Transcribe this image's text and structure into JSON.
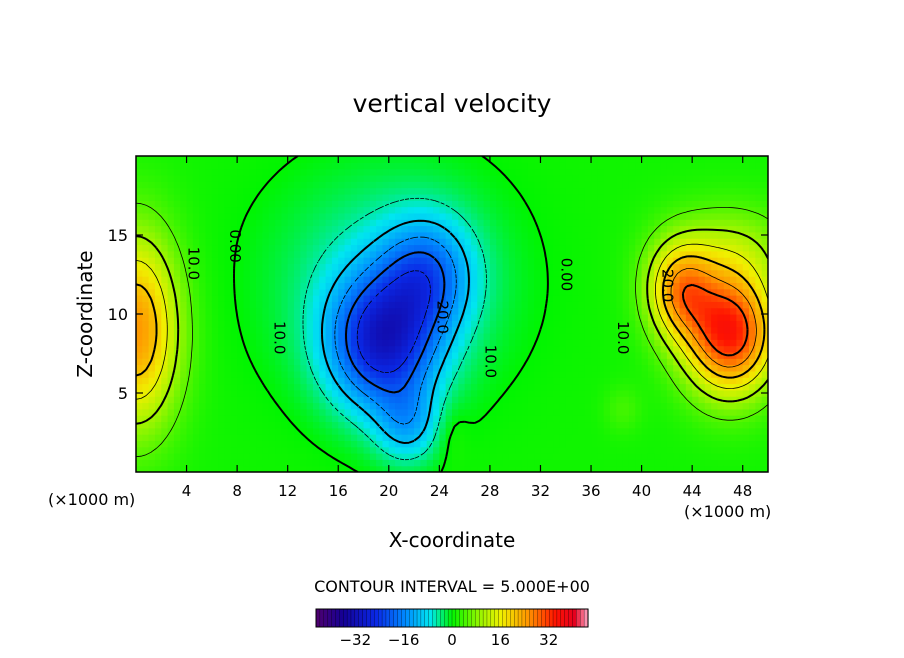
{
  "chart_data": {
    "type": "heatmap",
    "title": "vertical velocity",
    "xlabel": "X-coordinate",
    "ylabel": "Z-coordinate",
    "x_unit_left": "(×1000 m)",
    "x_unit_right": "(×1000 m)",
    "xlim": [
      0,
      50
    ],
    "ylim": [
      0,
      20
    ],
    "xticks": [
      4,
      8,
      12,
      16,
      20,
      24,
      28,
      32,
      36,
      40,
      44,
      48
    ],
    "yticks": [
      5,
      10,
      15
    ],
    "contour_interval_text": "CONTOUR INTERVAL = 5.000E+00",
    "contour_labels": [
      {
        "text": "10.0",
        "x": 4.5,
        "z": 13.2
      },
      {
        "text": "0.00",
        "x": 7.8,
        "z": 14.3
      },
      {
        "text": "10.0",
        "x": 11.3,
        "z": 8.5
      },
      {
        "text": "20.0",
        "x": 24.2,
        "z": 9.8
      },
      {
        "text": "10.0",
        "x": 28.0,
        "z": 7.0
      },
      {
        "text": "0.00",
        "x": 34.0,
        "z": 12.5
      },
      {
        "text": "20.0",
        "x": 42.0,
        "z": 11.8
      },
      {
        "text": "10.0",
        "x": 38.5,
        "z": 8.5
      }
    ],
    "features": [
      {
        "x": 0.5,
        "z": 9.5,
        "value": 26
      },
      {
        "x": 46.5,
        "z": 9.0,
        "value": 33
      },
      {
        "x": 42.8,
        "z": 11.8,
        "value": 28
      },
      {
        "x": 19.5,
        "z": 8.0,
        "value": -27
      },
      {
        "x": 23.5,
        "z": 12.5,
        "value": -15
      },
      {
        "x": 22.0,
        "z": 3.0,
        "value": -14
      }
    ],
    "colorbar": {
      "min": -45,
      "max": 45,
      "ticks": [
        -32,
        -16,
        0,
        16,
        32
      ],
      "tick_labels": [
        "−32",
        "−16",
        "0",
        "16",
        "32"
      ]
    }
  }
}
